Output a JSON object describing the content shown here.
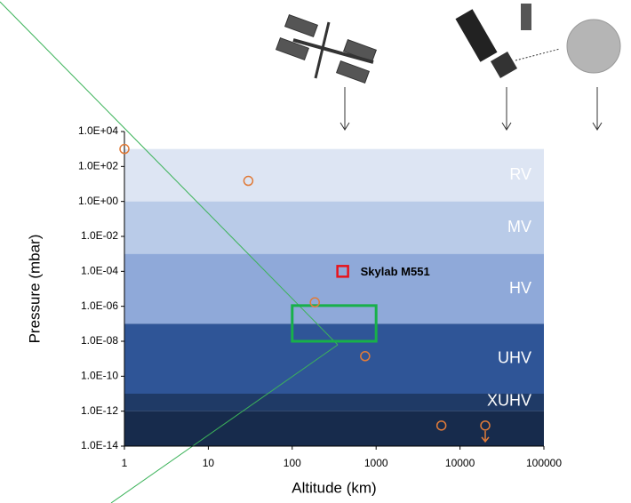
{
  "chart_data": {
    "type": "scatter",
    "xlabel": "Altitude (km)",
    "ylabel": "Pressure (mbar)",
    "xscale": "log",
    "yscale": "log",
    "xlim": [
      1,
      100000
    ],
    "ylim": [
      1e-14,
      10000
    ],
    "xticks": [
      1,
      10,
      100,
      1000,
      10000,
      100000
    ],
    "yticks": [
      {
        "value": 1e-14,
        "label": "1.0E-14"
      },
      {
        "value": 1e-12,
        "label": "1.0E-12"
      },
      {
        "value": 1e-10,
        "label": "1.0E-10"
      },
      {
        "value": 1e-08,
        "label": "1.0E-08"
      },
      {
        "value": 1e-06,
        "label": "1.0E-06"
      },
      {
        "value": 0.0001,
        "label": "1.0E-04"
      },
      {
        "value": 0.01,
        "label": "1.0E-02"
      },
      {
        "value": 1,
        "label": "1.0E+00"
      },
      {
        "value": 100,
        "label": "1.0E+02"
      },
      {
        "value": 10000,
        "label": "1.0E+04"
      }
    ],
    "bands": [
      {
        "name": "RV",
        "from": 1000,
        "to": 1,
        "color": "#dde5f3"
      },
      {
        "name": "MV",
        "from": 1,
        "to": 0.001,
        "color": "#b9cbe8"
      },
      {
        "name": "HV",
        "from": 0.001,
        "to": 1e-07,
        "color": "#8fa9d9"
      },
      {
        "name": "UHV",
        "from": 1e-07,
        "to": 1e-11,
        "color": "#2f5597"
      },
      {
        "name": "XUHV",
        "from": 1e-11,
        "to": 1e-12,
        "color": "#1f3a66"
      },
      {
        "from": 1e-12,
        "to": 1e-14,
        "color": "#172b4c"
      }
    ],
    "x": [
      1,
      30,
      186,
      740,
      6000,
      20000
    ],
    "values": [
      1000,
      15,
      1.7e-06,
      1.4e-09,
      1.5e-13,
      1.5e-13
    ],
    "color": "#e07b39",
    "annotation": {
      "text": "Skylab M551",
      "x": 400,
      "y": 0.0001,
      "color": "#e8141c"
    },
    "highlight": {
      "xlim": [
        100,
        1000
      ],
      "ylim": [
        1e-08,
        1.1e-06
      ],
      "color": "#18b04a"
    }
  }
}
